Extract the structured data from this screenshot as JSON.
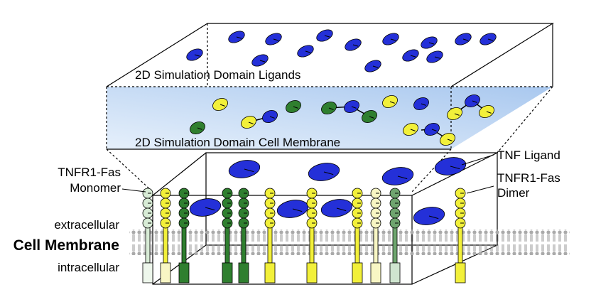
{
  "labels": {
    "ligands_domain": "2D Simulation Domain Ligands",
    "membrane_domain": "2D Simulation Domain Cell Membrane",
    "tnf_ligand": "TNF Ligand",
    "dimer": [
      "TNFR1-Fas",
      "Dimer"
    ],
    "monomer": [
      "TNFR1-Fas",
      "Monomer"
    ],
    "extracellular": "extracellular",
    "cell_membrane": "Cell Membrane",
    "intracellular": "intracellular"
  }
}
